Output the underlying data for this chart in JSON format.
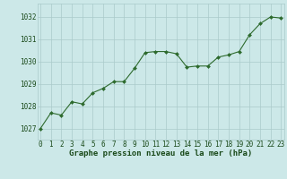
{
  "x": [
    0,
    1,
    2,
    3,
    4,
    5,
    6,
    7,
    8,
    9,
    10,
    11,
    12,
    13,
    14,
    15,
    16,
    17,
    18,
    19,
    20,
    21,
    22,
    23
  ],
  "y": [
    1027.0,
    1027.7,
    1027.6,
    1028.2,
    1028.1,
    1028.6,
    1028.8,
    1029.1,
    1029.1,
    1029.7,
    1030.4,
    1030.45,
    1030.45,
    1030.35,
    1029.75,
    1029.8,
    1029.8,
    1030.2,
    1030.3,
    1030.45,
    1031.2,
    1031.7,
    1032.0,
    1031.95
  ],
  "line_color": "#2d6a2d",
  "marker": "D",
  "marker_size": 2.0,
  "bg_color": "#cce8e8",
  "grid_color": "#aacaca",
  "xlabel": "Graphe pression niveau de la mer (hPa)",
  "xlabel_fontsize": 6.5,
  "ylabel_ticks": [
    1027,
    1028,
    1029,
    1030,
    1031,
    1032
  ],
  "ylim": [
    1026.5,
    1032.6
  ],
  "xlim": [
    -0.3,
    23.3
  ],
  "tick_fontsize": 5.5,
  "title_color": "#1a4a1a",
  "linewidth": 0.8
}
